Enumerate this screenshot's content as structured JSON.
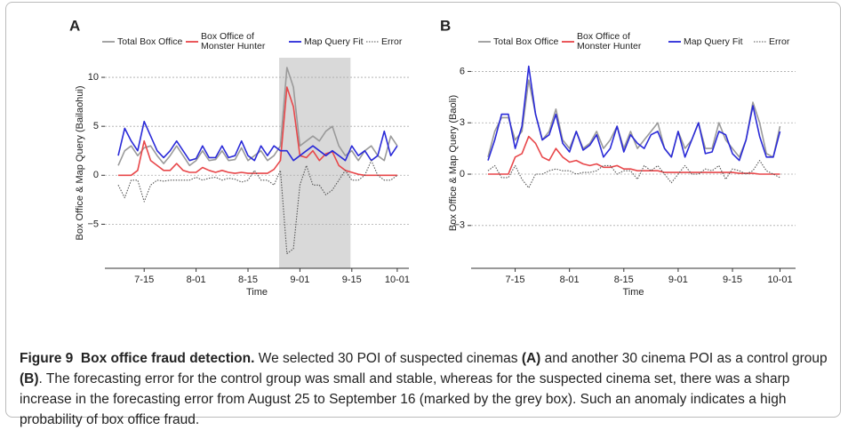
{
  "chart_data": [
    {
      "type": "line",
      "panel": "A",
      "y_label": "Box Office & Map Query (Bailaohui)",
      "x_label": "Time",
      "categories": [
        null,
        null,
        null,
        null,
        "7-15",
        null,
        null,
        null,
        null,
        null,
        null,
        null,
        "8-01",
        null,
        null,
        null,
        null,
        null,
        null,
        null,
        "8-15",
        null,
        null,
        null,
        null,
        null,
        null,
        null,
        "9-01",
        null,
        null,
        null,
        null,
        null,
        null,
        null,
        "9-15",
        null,
        null,
        null,
        null,
        null,
        null,
        "10-01"
      ],
      "ylim": [
        -9.5,
        12
      ],
      "yticks": [
        {
          "value": -5,
          "label": "−5"
        },
        0,
        5,
        10
      ],
      "grid": true,
      "shaded_span": [
        24.8,
        35.8
      ],
      "shade_color": "#d9d9d9",
      "series": [
        {
          "name": "Total Box Office",
          "color": "#9a9a9a",
          "line_style": "solid",
          "values": [
            1,
            2.5,
            3,
            2,
            2.8,
            3,
            2,
            1.2,
            2,
            3,
            2,
            1,
            1.5,
            2.5,
            1.5,
            1.6,
            2.5,
            1.5,
            1.6,
            2.8,
            1.5,
            2,
            2.5,
            1.5,
            2,
            3,
            11,
            9,
            3,
            3.5,
            4,
            3.5,
            4.5,
            5,
            3,
            2,
            2.5,
            1.5,
            2.5,
            3,
            2,
            1.5,
            4,
            3
          ]
        },
        {
          "name": "Box Office of Monster Hunter",
          "color": "#e8474a",
          "line_style": "solid",
          "values": [
            0,
            0,
            0,
            0.5,
            3.5,
            1.5,
            1,
            0.5,
            0.5,
            1.2,
            0.5,
            0.3,
            0.3,
            0.8,
            0.5,
            0.3,
            0.5,
            0.3,
            0.2,
            0.3,
            0.2,
            0.2,
            0.2,
            0.2,
            0.6,
            1.5,
            9,
            7,
            2,
            1.8,
            2.5,
            1.5,
            2.2,
            2.4,
            1,
            0.5,
            0.3,
            0.1,
            0,
            0,
            0,
            0,
            0,
            0
          ]
        },
        {
          "name": "Map Query Fit",
          "color": "#2a2ad8",
          "line_style": "solid",
          "values": [
            2,
            4.8,
            3.5,
            2.5,
            5.5,
            4,
            2.5,
            1.8,
            2.5,
            3.5,
            2.5,
            1.5,
            1.7,
            3,
            1.8,
            1.8,
            3,
            1.8,
            2,
            3.5,
            2,
            1.5,
            3,
            2,
            3,
            2.5,
            2.5,
            1.5,
            2,
            2.5,
            3,
            2.5,
            2,
            2.5,
            2,
            1.5,
            3,
            2,
            2.5,
            1.5,
            2,
            4.5,
            2,
            3
          ]
        },
        {
          "name": "Error",
          "color": "#555555",
          "line_style": "dotted",
          "values": [
            -1,
            -2.3,
            -0.5,
            -0.5,
            -2.7,
            -1,
            -0.5,
            -0.6,
            -0.5,
            -0.5,
            -0.5,
            -0.5,
            -0.2,
            -0.5,
            -0.3,
            -0.2,
            -0.5,
            -0.3,
            -0.4,
            -0.7,
            -0.5,
            0.5,
            -0.5,
            -0.5,
            -1,
            0.5,
            -8,
            -7.5,
            -1,
            1,
            -1,
            -1,
            -2,
            -1.5,
            -0.5,
            0.5,
            -0.5,
            -0.5,
            0,
            1.5,
            0,
            -0.5,
            -0.5,
            0
          ]
        }
      ]
    },
    {
      "type": "line",
      "panel": "B",
      "y_label": "Box Office & Map Query (Baoli)",
      "x_label": "Time",
      "categories": [
        null,
        null,
        null,
        null,
        "7-15",
        null,
        null,
        null,
        null,
        null,
        null,
        null,
        "8-01",
        null,
        null,
        null,
        null,
        null,
        null,
        null,
        "8-15",
        null,
        null,
        null,
        null,
        null,
        null,
        null,
        "9-01",
        null,
        null,
        null,
        null,
        null,
        null,
        null,
        "9-15",
        null,
        null,
        null,
        null,
        null,
        null,
        "10-01"
      ],
      "ylim": [
        -5.5,
        6.8
      ],
      "yticks": [
        {
          "value": -3,
          "label": "−3"
        },
        0,
        3,
        6
      ],
      "grid": true,
      "series": [
        {
          "name": "Total Box Office",
          "color": "#9a9a9a",
          "line_style": "solid",
          "values": [
            1,
            2.5,
            3.3,
            3.3,
            2,
            2.5,
            5.5,
            3.5,
            2,
            2.5,
            3.8,
            2,
            1.5,
            2.5,
            1.5,
            1.8,
            2.5,
            1.5,
            2,
            2.8,
            1.5,
            2.5,
            1.5,
            2,
            2.5,
            3,
            1.5,
            1,
            2.5,
            1.5,
            2,
            3,
            1.5,
            1.5,
            3,
            2,
            1.5,
            1,
            2,
            4.2,
            3,
            1.2,
            1,
            2.8
          ]
        },
        {
          "name": "Box Office of Monster Hunter",
          "color": "#e8474a",
          "line_style": "solid",
          "values": [
            0,
            0,
            0,
            0,
            1,
            1.2,
            2.2,
            1.8,
            1,
            0.8,
            1.5,
            1,
            0.7,
            0.8,
            0.6,
            0.5,
            0.6,
            0.4,
            0.4,
            0.5,
            0.3,
            0.3,
            0.2,
            0.2,
            0.2,
            0.2,
            0.1,
            0.1,
            0.1,
            0.1,
            0.1,
            0.1,
            0.1,
            0.1,
            0.1,
            0.1,
            0.1,
            0.05,
            0.05,
            0.05,
            0,
            0,
            0,
            0
          ]
        },
        {
          "name": "Map Query Fit",
          "color": "#2a2ad8",
          "line_style": "solid",
          "values": [
            0.8,
            2,
            3.5,
            3.5,
            1.5,
            2.8,
            6.3,
            3.5,
            2,
            2.3,
            3.5,
            1.8,
            1.3,
            2.5,
            1.4,
            1.7,
            2.3,
            1,
            1.5,
            2.8,
            1.3,
            2.3,
            1.8,
            1.5,
            2.3,
            2.5,
            1.5,
            1,
            2.5,
            1,
            2,
            3,
            1.2,
            1.3,
            2.5,
            2.3,
            1.2,
            0.8,
            2,
            4,
            2.2,
            1,
            1,
            2.5
          ]
        },
        {
          "name": "Error",
          "color": "#555555",
          "line_style": "dotted",
          "values": [
            0.2,
            0.5,
            -0.2,
            -0.2,
            0.5,
            -0.3,
            -0.8,
            0,
            0,
            0.2,
            0.3,
            0.2,
            0.2,
            0,
            0.1,
            0.1,
            0.2,
            0.5,
            0.5,
            0,
            0.2,
            0.2,
            -0.3,
            0.5,
            0.2,
            0.5,
            0,
            -0.5,
            0,
            0.5,
            0,
            0,
            0.3,
            0.2,
            0.5,
            -0.3,
            0.3,
            0.2,
            0,
            0.2,
            0.8,
            0.2,
            0,
            -0.2
          ]
        }
      ]
    }
  ],
  "caption": {
    "label": "Figure 9",
    "title": "Box office fraud detection.",
    "text_1": " We selected 30 POI of suspected cinemas ",
    "ref_a": "(A)",
    "text_2": " and another 30 cinema POI as a control group ",
    "ref_b": "(B)",
    "text_3": ". The forecasting error for the control group was small and stable, whereas for the suspected cinema set, there was a sharp increase in the forecasting error from August 25 to September 16 (marked by the grey box). Such an anomaly indicates a high probability of box office fraud."
  }
}
